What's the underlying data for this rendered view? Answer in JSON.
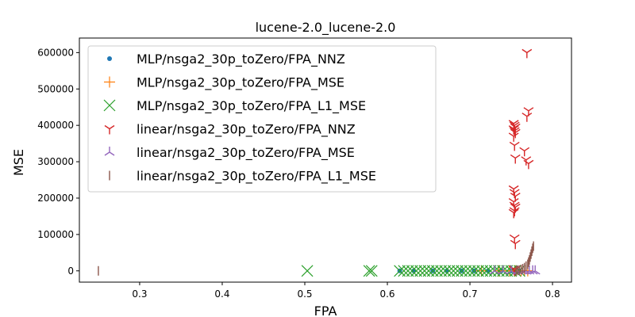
{
  "chart_data": {
    "type": "scatter",
    "title": "lucene-2.0_lucene-2.0",
    "xlabel": "FPA",
    "ylabel": "MSE",
    "xlim": [
      0.227,
      0.823
    ],
    "ylim": [
      -31000,
      640000
    ],
    "x_ticks": [
      0.3,
      0.4,
      0.5,
      0.6,
      0.7,
      0.8
    ],
    "x_tick_labels": [
      "0.3",
      "0.4",
      "0.5",
      "0.6",
      "0.7",
      "0.8"
    ],
    "y_ticks": [
      0,
      100000,
      200000,
      300000,
      400000,
      500000,
      600000
    ],
    "y_tick_labels": [
      "0",
      "100000",
      "200000",
      "300000",
      "400000",
      "500000",
      "600000"
    ],
    "grid": false,
    "legend_position": "top-left",
    "series": [
      {
        "name": "MLP/nsga2_30p_toZero/FPA_NNZ",
        "marker": "dot",
        "color": "#1f77b4",
        "x": [
          0.615,
          0.632,
          0.655,
          0.672,
          0.69,
          0.705,
          0.722,
          0.738,
          0.75,
          0.76
        ],
        "y": [
          0,
          0,
          0,
          0,
          0,
          0,
          0,
          0,
          0,
          0
        ]
      },
      {
        "name": "MLP/nsga2_30p_toZero/FPA_MSE",
        "marker": "plus",
        "color": "#ff7f0e",
        "x": [
          0.714,
          0.735,
          0.748,
          0.755,
          0.762,
          0.766,
          0.77
        ],
        "y": [
          0,
          0,
          0,
          0,
          0,
          0,
          0
        ]
      },
      {
        "name": "MLP/nsga2_30p_toZero/FPA_L1_MSE",
        "marker": "x",
        "color": "#2ca02c",
        "x": [
          0.503,
          0.578,
          0.581,
          0.615,
          0.62,
          0.625,
          0.63,
          0.635,
          0.64,
          0.645,
          0.65,
          0.655,
          0.66,
          0.665,
          0.67,
          0.675,
          0.68,
          0.685,
          0.69,
          0.695,
          0.7,
          0.705,
          0.71,
          0.715,
          0.72,
          0.725,
          0.73,
          0.735,
          0.74,
          0.745,
          0.75,
          0.755,
          0.76
        ],
        "y": [
          0,
          0,
          0,
          0,
          0,
          0,
          0,
          0,
          0,
          0,
          0,
          0,
          0,
          0,
          0,
          0,
          0,
          0,
          0,
          0,
          0,
          0,
          0,
          0,
          0,
          0,
          0,
          0,
          0,
          0,
          0,
          0,
          0
        ]
      },
      {
        "name": "linear/nsga2_30p_toZero/FPA_NNZ",
        "marker": "tri_down",
        "color": "#d62728",
        "x": [
          0.769,
          0.771,
          0.769,
          0.766,
          0.768,
          0.771,
          0.753,
          0.754,
          0.755,
          0.753,
          0.754,
          0.755,
          0.753,
          0.754,
          0.755,
          0.753,
          0.754,
          0.755,
          0.753,
          0.754,
          0.755,
          0.754,
          0.753,
          0.754,
          0.755,
          0.753,
          0.754
        ],
        "y": [
          600000,
          440000,
          425000,
          330000,
          305000,
          295000,
          405000,
          400000,
          395000,
          390000,
          385000,
          380000,
          370000,
          345000,
          310000,
          225000,
          215000,
          205000,
          190000,
          180000,
          175000,
          165000,
          160000,
          90000,
          75000,
          5000,
          2000
        ]
      },
      {
        "name": "linear/nsga2_30p_toZero/FPA_MSE",
        "marker": "tri_up",
        "color": "#9467bd",
        "x": [
          0.73,
          0.74,
          0.75,
          0.758,
          0.764,
          0.768,
          0.772,
          0.776,
          0.779
        ],
        "y": [
          0,
          0,
          0,
          0,
          0,
          0,
          0,
          0,
          0
        ]
      },
      {
        "name": "linear/nsga2_30p_toZero/FPA_L1_MSE",
        "marker": "vline",
        "color": "#8c564b",
        "x": [
          0.25,
          0.756,
          0.758,
          0.76,
          0.762,
          0.764,
          0.766,
          0.768,
          0.77,
          0.771,
          0.772,
          0.773,
          0.774,
          0.775,
          0.776,
          0.777
        ],
        "y": [
          0,
          500,
          1000,
          2000,
          4000,
          6000,
          9000,
          13000,
          18000,
          24000,
          30000,
          38000,
          46000,
          54000,
          62000,
          68000
        ]
      }
    ]
  }
}
